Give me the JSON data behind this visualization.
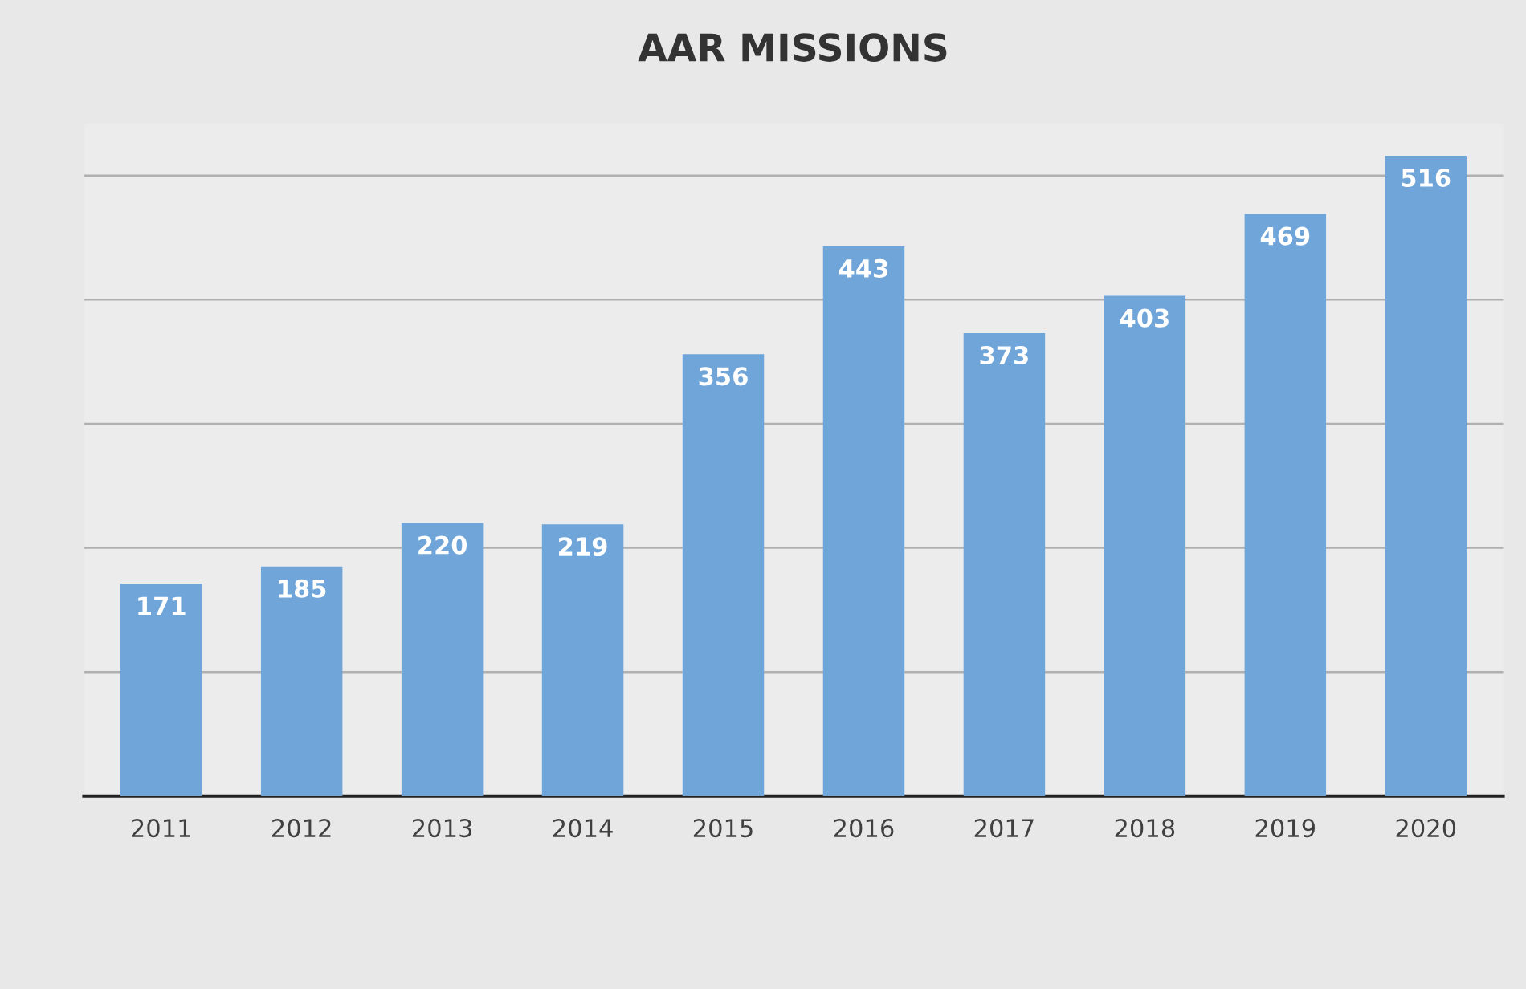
{
  "chart_data": {
    "type": "bar",
    "title": "AAR MISSIONS",
    "categories": [
      "2011",
      "2012",
      "2013",
      "2014",
      "2015",
      "2016",
      "2017",
      "2018",
      "2019",
      "2020"
    ],
    "values": [
      171,
      185,
      220,
      219,
      356,
      443,
      373,
      403,
      469,
      516
    ],
    "color": "#6fa5d9",
    "yticks": [
      {
        "value": 0,
        "label": null
      },
      {
        "value": 100,
        "label": null
      },
      {
        "value": 200,
        "label": null
      },
      {
        "value": 300,
        "label": null
      },
      {
        "value": 400,
        "label": null
      },
      {
        "value": 500,
        "label": null
      }
    ],
    "grid": "y",
    "data_labels": true,
    "tick_labels": "x"
  }
}
